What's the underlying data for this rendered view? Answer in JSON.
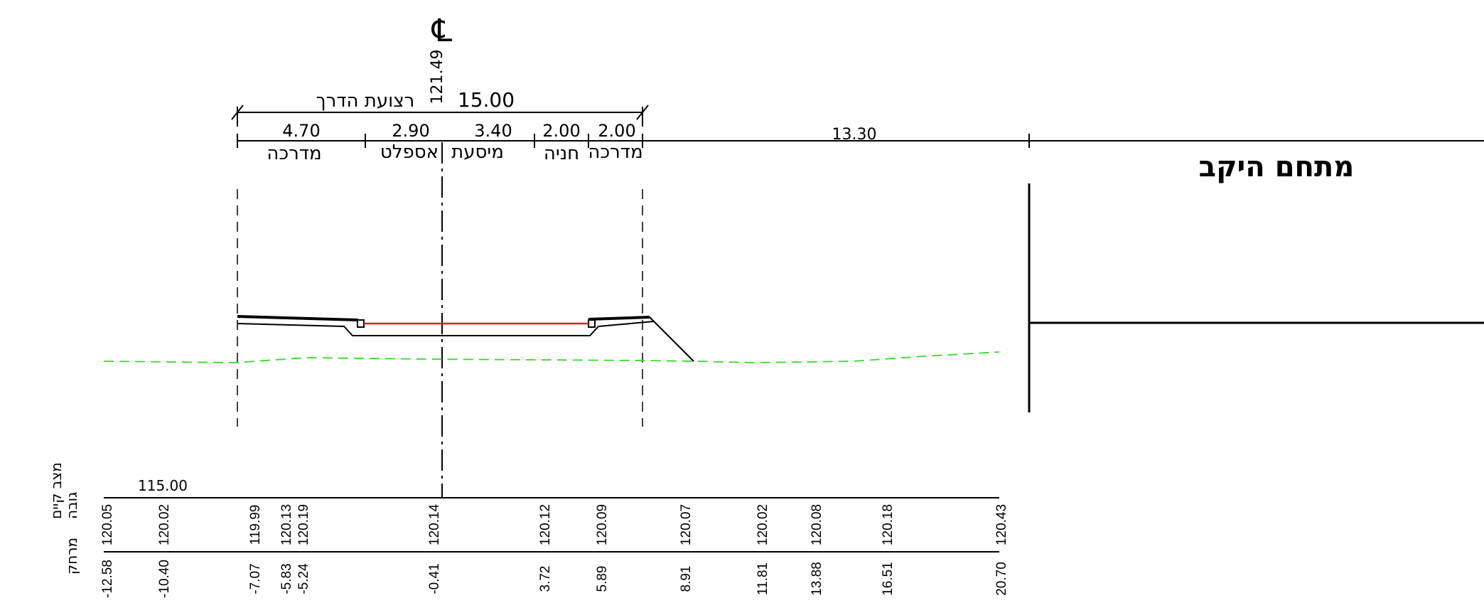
{
  "centerline": {
    "symbol": "℄",
    "elevation": "121.49"
  },
  "road": {
    "total_label": "רצועת הדרך",
    "total_width": "15.00",
    "segments": [
      {
        "width": "4.70",
        "name": "מדרכה"
      },
      {
        "width": "2.90",
        "name": "אספלט"
      },
      {
        "width": "3.40",
        "name": "מיסעת"
      },
      {
        "width": "2.00",
        "name": "חניה"
      },
      {
        "width": "2.00",
        "name": "מדרכה"
      }
    ],
    "offset_dimension": "13.30"
  },
  "adjacent_area": {
    "label": "מתחם היקב"
  },
  "profile": {
    "datum": "115.00",
    "row_labels": {
      "condition": "מצב קיים",
      "elevation": "גובה",
      "distance": "מרחק"
    },
    "stations": [
      {
        "elevation": "120.05",
        "distance": "-12.58"
      },
      {
        "elevation": "120.02",
        "distance": "-10.40"
      },
      {
        "elevation": "119.99",
        "distance": "-7.07"
      },
      {
        "elevation": "120.13",
        "distance": "-5.83"
      },
      {
        "elevation": "120.19",
        "distance": "-5.24"
      },
      {
        "elevation": "120.14",
        "distance": "-0.41"
      },
      {
        "elevation": "120.12",
        "distance": "3.72"
      },
      {
        "elevation": "120.09",
        "distance": "5.89"
      },
      {
        "elevation": "120.07",
        "distance": "8.91"
      },
      {
        "elevation": "120.02",
        "distance": "11.81"
      },
      {
        "elevation": "120.08",
        "distance": "13.88"
      },
      {
        "elevation": "120.18",
        "distance": "16.51"
      },
      {
        "elevation": "120.43",
        "distance": "20.70"
      }
    ]
  },
  "colors": {
    "line": "#000000",
    "asphalt": "#e41e1e",
    "existing_ground": "#33dd22"
  }
}
